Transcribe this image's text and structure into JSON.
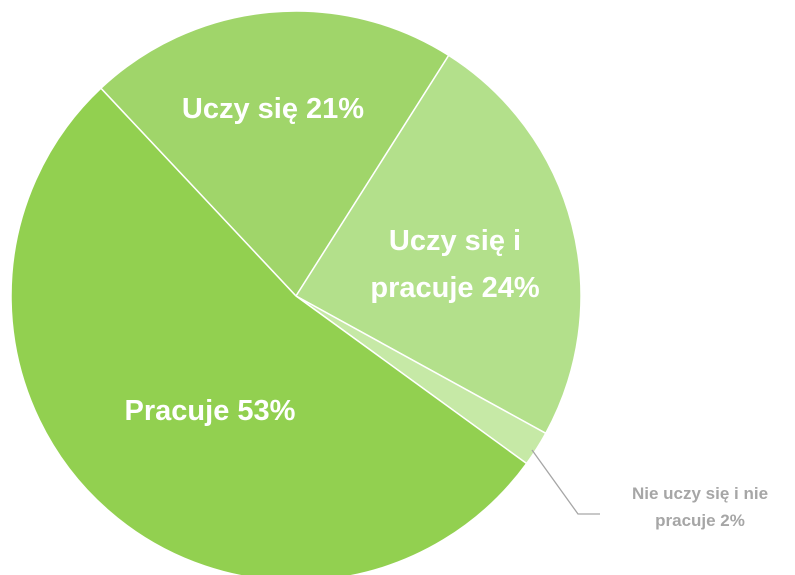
{
  "chart_data": {
    "type": "pie",
    "labels": [
      [
        "Uczy się 21%"
      ],
      [
        "Uczy się i",
        "pracuje 24%"
      ],
      [
        "Nie uczy się i nie",
        "pracuje 2%"
      ],
      [
        "Pracuje 53%"
      ]
    ],
    "values": [
      21,
      24,
      2,
      53
    ],
    "colors": [
      "#a0d56a",
      "#b3e08b",
      "#c6e9a6",
      "#92d050"
    ]
  }
}
